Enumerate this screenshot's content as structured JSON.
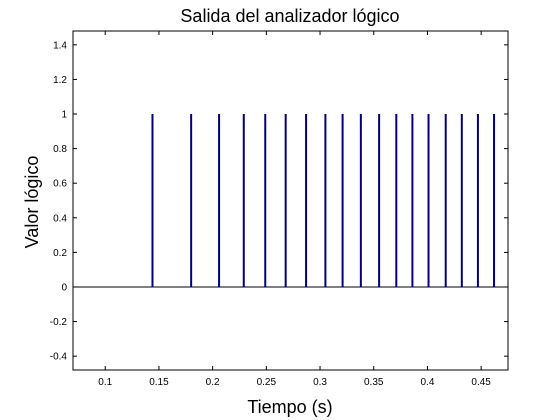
{
  "chart_data": {
    "type": "stem",
    "title": "Salida del analizador lógico",
    "xlabel": "Tiempo (s)",
    "ylabel": "Valor lógico",
    "xlim": [
      0.07,
      0.475
    ],
    "ylim": [
      -0.48,
      1.48
    ],
    "xticks": [
      {
        "value": 0.1,
        "label": "0.1"
      },
      {
        "value": 0.15,
        "label": "0.15"
      },
      {
        "value": 0.2,
        "label": "0.2"
      },
      {
        "value": 0.25,
        "label": "0.25"
      },
      {
        "value": 0.3,
        "label": "0.3"
      },
      {
        "value": 0.35,
        "label": "0.35"
      },
      {
        "value": 0.4,
        "label": "0.4"
      },
      {
        "value": 0.45,
        "label": "0.45"
      }
    ],
    "yticks": [
      {
        "value": -0.4,
        "label": "-0.4"
      },
      {
        "value": -0.2,
        "label": "-0.2"
      },
      {
        "value": 0,
        "label": "0"
      },
      {
        "value": 0.2,
        "label": "0.2"
      },
      {
        "value": 0.4,
        "label": "0.4"
      },
      {
        "value": 0.6,
        "label": "0.6"
      },
      {
        "value": 0.8,
        "label": "0.8"
      },
      {
        "value": 1,
        "label": "1"
      },
      {
        "value": 1.2,
        "label": "1.2"
      },
      {
        "value": 1.4,
        "label": "1.4"
      }
    ],
    "series": [
      {
        "x": [
          0.144,
          0.18,
          0.206,
          0.229,
          0.249,
          0.268,
          0.287,
          0.305,
          0.321,
          0.338,
          0.355,
          0.371,
          0.386,
          0.401,
          0.417,
          0.432,
          0.447,
          0.462
        ],
        "y": [
          1,
          1,
          1,
          1,
          1,
          1,
          1,
          1,
          1,
          1,
          1,
          1,
          1,
          1,
          1,
          1,
          1,
          1
        ]
      }
    ],
    "grid": false,
    "colors": {
      "stem": "#00007f",
      "axis": "#000000",
      "baseline": "#000000"
    }
  }
}
